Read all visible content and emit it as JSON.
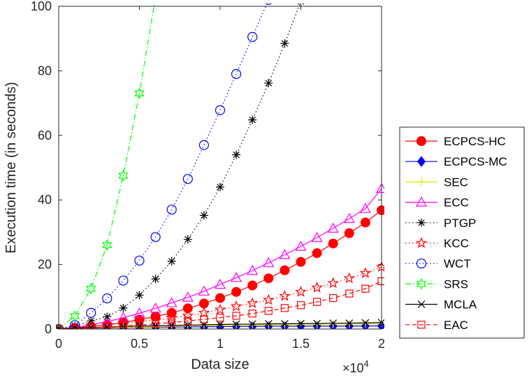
{
  "chart_data": {
    "type": "line",
    "title": "",
    "xlabel": "Data size",
    "ylabel": "Execution time (in seconds)",
    "x_exponent_label": "×10",
    "x_exponent_power": "4",
    "xlim": [
      0,
      20000
    ],
    "ylim": [
      0,
      100
    ],
    "x_ticks": [
      0,
      5000,
      10000,
      15000,
      20000
    ],
    "x_tick_labels": [
      "0",
      "0.5",
      "1",
      "1.5",
      "2"
    ],
    "y_ticks": [
      0,
      20,
      40,
      60,
      80,
      100
    ],
    "y_tick_labels": [
      "0",
      "20",
      "40",
      "60",
      "80",
      "100"
    ],
    "grid": false,
    "legend_position": "right",
    "series": [
      {
        "name": "ECPCS-HC",
        "color": "#ff0000",
        "line": "solid",
        "marker": "filled-circle",
        "x": [
          0,
          1000,
          2000,
          3000,
          4000,
          5000,
          6000,
          7000,
          8000,
          9000,
          10000,
          11000,
          12000,
          13000,
          14000,
          15000,
          16000,
          17000,
          18000,
          19000,
          20000
        ],
        "y": [
          0,
          0.3,
          0.8,
          1.3,
          2.0,
          2.9,
          3.9,
          5.0,
          6.4,
          7.9,
          9.6,
          11.5,
          13.5,
          15.7,
          18.2,
          20.8,
          23.5,
          26.5,
          29.7,
          33.0,
          36.8
        ]
      },
      {
        "name": "ECPCS-MC",
        "color": "#0000ff",
        "line": "solid",
        "marker": "filled-diamond",
        "x": [
          0,
          1000,
          2000,
          3000,
          4000,
          5000,
          6000,
          7000,
          8000,
          9000,
          10000,
          11000,
          12000,
          13000,
          14000,
          15000,
          16000,
          17000,
          18000,
          19000,
          20000
        ],
        "y": [
          0,
          0.1,
          0.2,
          0.3,
          0.4,
          0.5,
          0.55,
          0.6,
          0.65,
          0.7,
          0.75,
          0.8,
          0.8,
          0.85,
          0.85,
          0.9,
          0.9,
          0.9,
          0.9,
          0.95,
          0.95
        ]
      },
      {
        "name": "SEC",
        "color": "#e6e600",
        "line": "solid",
        "marker": "plus",
        "x": [
          0,
          1000,
          2000,
          3000,
          4000,
          5000,
          6000,
          7000,
          8000,
          9000,
          10000,
          11000,
          12000,
          13000,
          14000,
          15000,
          16000,
          17000,
          18000,
          19000,
          20000
        ],
        "y": [
          0,
          0.2,
          0.3,
          0.4,
          0.5,
          0.6,
          0.7,
          0.8,
          0.9,
          1.0,
          1.1,
          1.2,
          1.2,
          1.3,
          1.3,
          1.4,
          1.4,
          1.5,
          1.5,
          1.6,
          1.6
        ]
      },
      {
        "name": "ECC",
        "color": "#ff00ff",
        "line": "solid",
        "marker": "open-triangle",
        "x": [
          0,
          1000,
          2000,
          3000,
          4000,
          5000,
          6000,
          7000,
          8000,
          9000,
          10000,
          11000,
          12000,
          13000,
          14000,
          15000,
          16000,
          17000,
          18000,
          19000,
          20000
        ],
        "y": [
          0,
          0.5,
          1.3,
          2.3,
          3.5,
          4.9,
          6.4,
          8.1,
          9.8,
          11.7,
          13.8,
          15.9,
          18.1,
          20.5,
          23.0,
          25.6,
          28.3,
          31.2,
          34.2,
          37.3,
          43.5
        ]
      },
      {
        "name": "PTGP",
        "color": "#000000",
        "line": "dotted",
        "marker": "asterisk",
        "x": [
          0,
          1000,
          2000,
          3000,
          4000,
          5000,
          6000,
          7000,
          8000,
          9000,
          10000,
          11000,
          12000,
          13000,
          14000,
          15000
        ],
        "y": [
          0,
          1.0,
          2.5,
          3.8,
          6.5,
          10.5,
          15.5,
          21.0,
          27.8,
          35.2,
          44.0,
          54.0,
          64.8,
          76.2,
          88.5,
          101.5
        ]
      },
      {
        "name": "KCC",
        "color": "#ff0000",
        "line": "dotted",
        "marker": "open-pentagram",
        "x": [
          0,
          1000,
          2000,
          3000,
          4000,
          5000,
          6000,
          7000,
          8000,
          9000,
          10000,
          11000,
          12000,
          13000,
          14000,
          15000,
          16000,
          17000,
          18000,
          19000,
          20000
        ],
        "y": [
          0,
          0.4,
          0.9,
          1.3,
          1.7,
          2.2,
          2.8,
          3.4,
          4.1,
          5.0,
          6.0,
          7.0,
          8.0,
          9.0,
          10.2,
          11.5,
          12.8,
          14.2,
          15.7,
          17.3,
          19.2
        ]
      },
      {
        "name": "WCT",
        "color": "#0000ff",
        "line": "dotted",
        "marker": "open-circle",
        "x": [
          0,
          1000,
          2000,
          3000,
          4000,
          5000,
          6000,
          7000,
          8000,
          9000,
          10000,
          11000,
          12000,
          13000
        ],
        "y": [
          0,
          1.2,
          5.0,
          9.5,
          15.0,
          21.2,
          28.5,
          37.0,
          46.5,
          57.0,
          67.8,
          79.0,
          90.5,
          102.0
        ]
      },
      {
        "name": "SRS",
        "color": "#00ff00",
        "line": "dashdot",
        "marker": "open-hexagram",
        "x": [
          0,
          1000,
          2000,
          3000,
          4000,
          5000,
          6000
        ],
        "y": [
          0,
          4.0,
          12.5,
          26.0,
          47.5,
          73.0,
          103.0
        ]
      },
      {
        "name": "MCLA",
        "color": "#000000",
        "line": "solid",
        "marker": "cross",
        "x": [
          0,
          1000,
          2000,
          3000,
          4000,
          5000,
          6000,
          7000,
          8000,
          9000,
          10000,
          11000,
          12000,
          13000,
          14000,
          15000,
          16000,
          17000,
          18000,
          19000,
          20000
        ],
        "y": [
          0,
          0.3,
          0.5,
          0.6,
          0.8,
          0.9,
          1.0,
          1.1,
          1.2,
          1.3,
          1.4,
          1.5,
          1.5,
          1.6,
          1.6,
          1.7,
          1.7,
          1.8,
          1.8,
          1.9,
          2.0
        ]
      },
      {
        "name": "EAC",
        "color": "#ff0000",
        "line": "dashed",
        "marker": "open-square",
        "x": [
          0,
          1000,
          2000,
          3000,
          4000,
          5000,
          6000,
          7000,
          8000,
          9000,
          10000,
          11000,
          12000,
          13000,
          14000,
          15000,
          16000,
          17000,
          18000,
          19000,
          20000
        ],
        "y": [
          0,
          0.1,
          0.3,
          0.6,
          0.9,
          1.2,
          1.6,
          2.0,
          2.5,
          3.0,
          3.5,
          4.1,
          4.8,
          5.6,
          6.5,
          7.4,
          8.4,
          9.6,
          11.0,
          12.5,
          14.8
        ]
      }
    ]
  }
}
